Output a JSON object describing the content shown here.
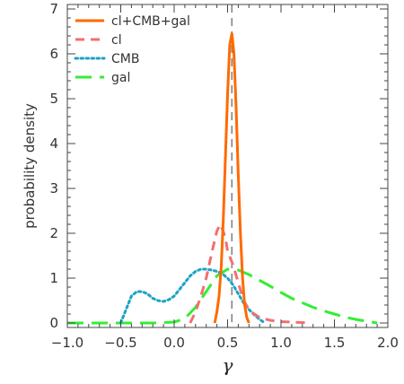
{
  "chart_data": {
    "type": "line",
    "title": "",
    "xlabel": "γ",
    "ylabel": "probability density",
    "xlim": [
      -1.0,
      2.0
    ],
    "ylim": [
      -0.1,
      7.1
    ],
    "xticks": [
      -1.0,
      -0.5,
      0.0,
      0.5,
      1.0,
      1.5,
      2.0
    ],
    "xtick_labels": [
      "−1.0",
      "−0.5",
      "0.0",
      "0.5",
      "1.0",
      "1.5",
      "2.0"
    ],
    "yticks": [
      0,
      1,
      2,
      3,
      4,
      5,
      6,
      7
    ],
    "ytick_labels": [
      "0",
      "1",
      "2",
      "3",
      "4",
      "5",
      "6",
      "7"
    ],
    "grid": false,
    "legend_position": "top-left",
    "reference_line": {
      "x": 0.54,
      "style": "dashed",
      "color": "#7f7f7f"
    },
    "series": [
      {
        "name": "cl+CMB+gal",
        "color": "#ff6a00",
        "dash": "solid",
        "x": [
          0.38,
          0.4,
          0.42,
          0.44,
          0.46,
          0.48,
          0.5,
          0.52,
          0.54,
          0.56,
          0.58,
          0.6,
          0.62,
          0.64,
          0.66,
          0.68,
          0.7
        ],
        "y": [
          0.0,
          0.25,
          0.6,
          1.25,
          2.3,
          3.7,
          5.1,
          6.2,
          6.45,
          6.0,
          4.8,
          3.3,
          2.0,
          1.0,
          0.4,
          0.12,
          0.0
        ]
      },
      {
        "name": "cl",
        "color": "#f07070",
        "dash": "dashed",
        "x": [
          0.15,
          0.2,
          0.25,
          0.3,
          0.35,
          0.4,
          0.43,
          0.45,
          0.48,
          0.5,
          0.55,
          0.6,
          0.65,
          0.7,
          0.75,
          0.8,
          0.9,
          1.0,
          1.1,
          1.2,
          1.28
        ],
        "y": [
          0.0,
          0.25,
          0.6,
          1.0,
          1.55,
          2.05,
          2.2,
          2.1,
          1.9,
          1.6,
          1.3,
          0.9,
          0.5,
          0.3,
          0.2,
          0.12,
          0.06,
          0.03,
          0.02,
          0.01,
          0.0
        ]
      },
      {
        "name": "CMB",
        "color": "#1aa3c7",
        "dash": "dotted",
        "x": [
          -0.5,
          -0.45,
          -0.4,
          -0.35,
          -0.3,
          -0.25,
          -0.2,
          -0.15,
          -0.1,
          -0.05,
          0.0,
          0.05,
          0.1,
          0.15,
          0.2,
          0.25,
          0.3,
          0.35,
          0.4,
          0.45,
          0.5,
          0.55,
          0.6,
          0.65,
          0.7,
          0.75,
          0.8,
          0.85
        ],
        "y": [
          0.0,
          0.3,
          0.6,
          0.7,
          0.7,
          0.65,
          0.55,
          0.5,
          0.48,
          0.52,
          0.6,
          0.75,
          0.9,
          1.05,
          1.15,
          1.2,
          1.2,
          1.18,
          1.15,
          1.1,
          1.0,
          0.85,
          0.65,
          0.45,
          0.3,
          0.18,
          0.08,
          0.0
        ]
      },
      {
        "name": "gal",
        "color": "#33ee33",
        "dash": "longdash",
        "x": [
          -1.0,
          -0.5,
          -0.2,
          0.0,
          0.1,
          0.2,
          0.3,
          0.4,
          0.5,
          0.6,
          0.7,
          0.8,
          0.9,
          1.0,
          1.1,
          1.2,
          1.3,
          1.4,
          1.5,
          1.6,
          1.7,
          1.8,
          1.9
        ],
        "y": [
          0.0,
          0.0,
          0.0,
          0.02,
          0.1,
          0.35,
          0.7,
          1.05,
          1.2,
          1.18,
          1.08,
          0.95,
          0.82,
          0.68,
          0.55,
          0.45,
          0.35,
          0.27,
          0.2,
          0.13,
          0.08,
          0.04,
          0.0
        ]
      }
    ]
  }
}
